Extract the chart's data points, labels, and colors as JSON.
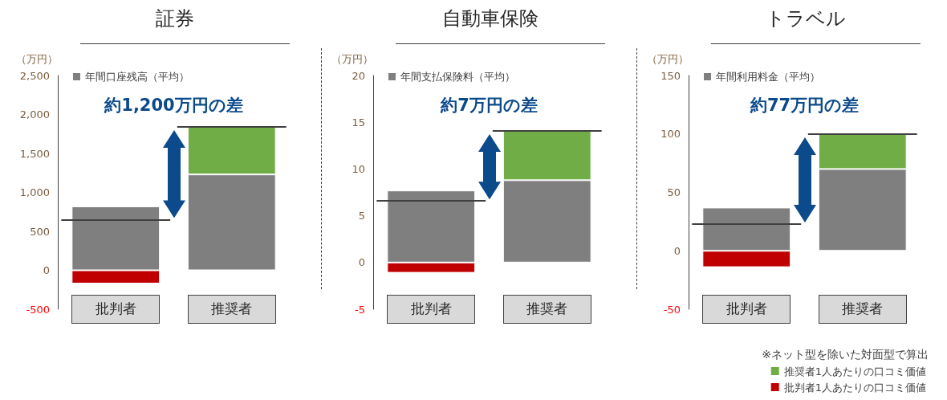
{
  "chart_data": [
    {
      "type": "bar",
      "title": "証券",
      "ylabel": "（万円）",
      "categories": [
        "批判者",
        "推奨者"
      ],
      "stacked": true,
      "series": [
        {
          "name": "年間口座残高（平均）",
          "color": "#7f7f7f",
          "values": [
            820,
            1230
          ]
        },
        {
          "color": "#70ad47",
          "values": [
            null,
            610
          ]
        },
        {
          "color": "#c00000",
          "values": [
            -170,
            null
          ]
        }
      ],
      "ylim": [
        -500,
        2500
      ],
      "yticks": [
        -500,
        0,
        500,
        {
          "value": 1000,
          "label": "1,000"
        },
        {
          "value": 1500,
          "label": "1,500"
        },
        {
          "value": 2000,
          "label": "2,000"
        },
        {
          "value": 2500,
          "label": "2,500"
        }
      ],
      "ref_lines": [
        {
          "axis": "y",
          "value": 650,
          "color": "#404040"
        },
        {
          "axis": "y",
          "value": 1840,
          "color": "#404040"
        }
      ],
      "annotations": [
        "約1,200万円の差"
      ],
      "grid": false,
      "legend": "top left"
    },
    {
      "type": "bar",
      "title": "自動車保険",
      "ylabel": "（万円）",
      "categories": [
        "批判者",
        "推奨者"
      ],
      "stacked": true,
      "series": [
        {
          "name": "年間支払保険料（平均）",
          "color": "#7f7f7f",
          "values": [
            7.7,
            8.8
          ]
        },
        {
          "color": "#70ad47",
          "values": [
            null,
            5.3
          ]
        },
        {
          "color": "#c00000",
          "values": [
            -1.1,
            null
          ]
        }
      ],
      "ylim": [
        -5,
        20
      ],
      "yticks": [
        -5,
        0,
        5,
        10,
        15,
        20
      ],
      "ref_lines": [
        {
          "axis": "y",
          "value": 6.6,
          "color": "#404040"
        },
        {
          "axis": "y",
          "value": 14.1,
          "color": "#404040"
        }
      ],
      "annotations": [
        "約7万円の差"
      ],
      "grid": false,
      "legend": "top left"
    },
    {
      "type": "bar",
      "title": "トラベル",
      "ylabel": "（万円）",
      "categories": [
        "批判者",
        "推奨者"
      ],
      "stacked": true,
      "series": [
        {
          "name": "年間利用料金（平均）",
          "color": "#7f7f7f",
          "values": [
            37,
            70
          ]
        },
        {
          "name": "推奨者1人あたりの口コミ価値",
          "color": "#70ad47",
          "values": [
            null,
            30
          ]
        },
        {
          "name": "批判者1人あたりの口コミ価値",
          "color": "#c00000",
          "values": [
            -14,
            null
          ]
        }
      ],
      "ylim": [
        -50,
        150
      ],
      "yticks": [
        -50,
        0,
        50,
        100,
        150
      ],
      "ref_lines": [
        {
          "axis": "y",
          "value": 23,
          "color": "#404040"
        },
        {
          "axis": "y",
          "value": 100,
          "color": "#404040"
        }
      ],
      "annotations": [
        "約77万円の差",
        "※ネット型を除いた対面型で算出"
      ],
      "grid": false,
      "legend": "bottom right"
    }
  ]
}
